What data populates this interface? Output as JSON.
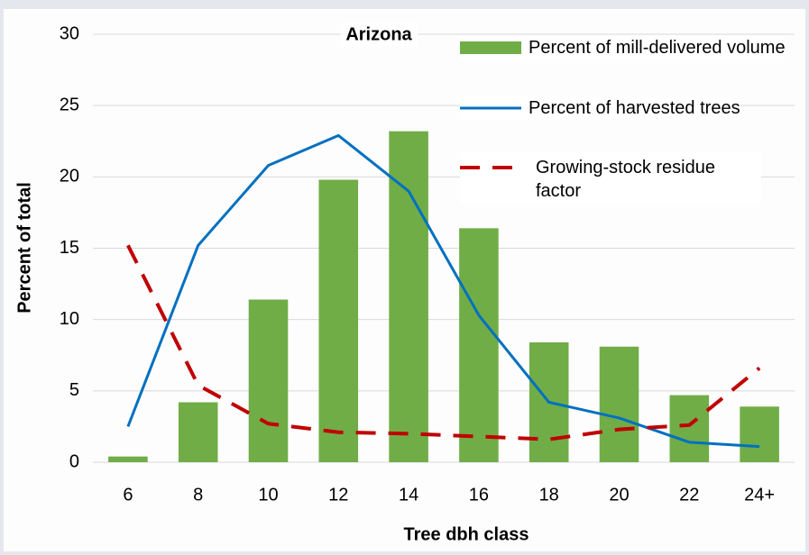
{
  "chart_data": {
    "type": "bar",
    "title": "Arizona",
    "xlabel": "Tree dbh class",
    "ylabel": "Percent of total",
    "categories": [
      "6",
      "8",
      "10",
      "12",
      "14",
      "16",
      "18",
      "20",
      "22",
      "24+"
    ],
    "series": [
      {
        "name": "Percent of mill-delivered volume",
        "type": "bar",
        "color": "#70ad47",
        "values": [
          0.4,
          4.2,
          11.4,
          19.8,
          23.2,
          16.4,
          8.4,
          8.1,
          4.7,
          3.9
        ]
      },
      {
        "name": "Percent of harvested trees",
        "type": "line",
        "color": "#0070c0",
        "values": [
          2.5,
          15.2,
          20.8,
          22.9,
          19.0,
          10.3,
          4.2,
          3.1,
          1.4,
          1.1
        ]
      },
      {
        "name": "Growing-stock residue factor",
        "type": "line",
        "dashed": true,
        "color": "#c00000",
        "values": [
          15.2,
          5.4,
          2.7,
          2.1,
          2.0,
          1.8,
          1.6,
          2.3,
          2.6,
          6.6
        ]
      }
    ],
    "ylim": [
      0,
      30
    ],
    "yticks": [
      0,
      5,
      10,
      15,
      20,
      25,
      30
    ],
    "grid": true,
    "legend": "top-right"
  }
}
